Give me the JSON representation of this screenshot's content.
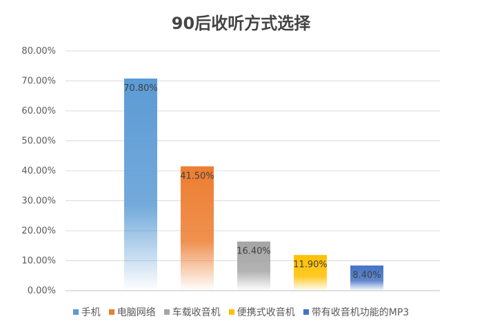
{
  "chart_data": {
    "type": "bar",
    "title": "90后收听方式选择",
    "xlabel": "",
    "ylabel": "",
    "ylim": [
      0,
      80
    ],
    "yticks": [
      "0.00%",
      "10.00%",
      "20.00%",
      "30.00%",
      "40.00%",
      "50.00%",
      "60.00%",
      "70.00%",
      "80.00%"
    ],
    "grid": true,
    "legend_position": "bottom",
    "series": [
      {
        "name": "手机",
        "value": 70.8,
        "label": "70.80%",
        "color": "#5b9bd5"
      },
      {
        "name": "电脑网络",
        "value": 41.5,
        "label": "41.50%",
        "color": "#ed7d31"
      },
      {
        "name": "车载收音机",
        "value": 16.4,
        "label": "16.40%",
        "color": "#a5a5a5"
      },
      {
        "name": "便携式收音机",
        "value": 11.9,
        "label": "11.90%",
        "color": "#ffc000"
      },
      {
        "name": "带有收音机功能的MP3",
        "value": 8.4,
        "label": "8.40%",
        "color": "#4472c4"
      }
    ]
  }
}
